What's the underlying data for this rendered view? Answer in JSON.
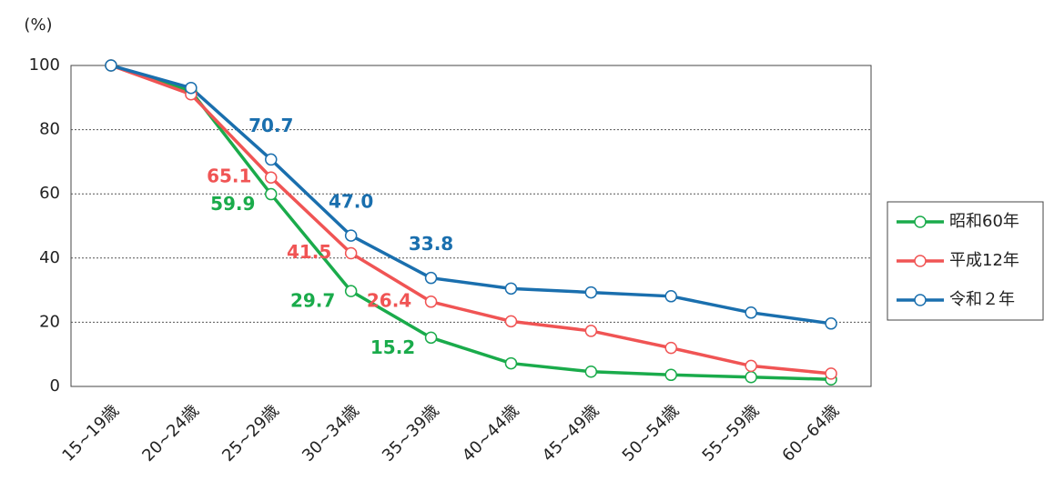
{
  "chart_data": {
    "type": "line",
    "y_label": "(%)",
    "categories": [
      "15~19歳",
      "20~24歳",
      "25~29歳",
      "30~34歳",
      "35~39歳",
      "40~44歳",
      "45~49歳",
      "50~54歳",
      "55~59歳",
      "60~64歳"
    ],
    "series": [
      {
        "name": "昭和60年",
        "color": "#1aab4b",
        "values": [
          100,
          92,
          59.9,
          29.7,
          15.2,
          7.2,
          4.6,
          3.6,
          2.9,
          2.2
        ],
        "value_labels": [
          null,
          null,
          "59.9",
          "29.7",
          "15.2",
          null,
          null,
          null,
          null,
          null
        ]
      },
      {
        "name": "平成12年",
        "color": "#f05454",
        "values": [
          100,
          91,
          65.1,
          41.5,
          26.4,
          20.3,
          17.3,
          12,
          6.4,
          4
        ],
        "value_labels": [
          null,
          null,
          "65.1",
          "41.5",
          "26.4",
          null,
          null,
          null,
          null,
          null
        ]
      },
      {
        "name": "令和２年",
        "color": "#1a6fae",
        "values": [
          100,
          93,
          70.7,
          47,
          33.8,
          30.5,
          29.3,
          28.1,
          23,
          19.6
        ],
        "value_labels": [
          null,
          null,
          "70.7",
          "47.0",
          "33.8",
          null,
          null,
          null,
          null,
          null
        ]
      }
    ],
    "ylim": [
      0,
      100
    ],
    "yticks": [
      0,
      20,
      40,
      60,
      80,
      100
    ],
    "grid": true,
    "legend": "right"
  }
}
